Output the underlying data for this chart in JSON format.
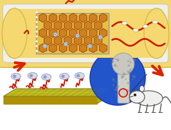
{
  "bg_color": "#ffffff",
  "figsize": [
    2.47,
    1.89
  ],
  "dpi": 100,
  "bone_outer_color": "#f5d870",
  "bone_white_color": "#f0efe8",
  "bone_inner_color": "#f5d870",
  "scaffold_bg": "#e8c040",
  "scaffold_edge": "#b07820",
  "hex_face": "#d08020",
  "hex_edge": "#a05010",
  "vessel_color": "#cc1500",
  "arrow_color": "#dd2200",
  "platform_top": "#d4c000",
  "platform_side": "#b09800",
  "platform_grid": "#4466aa",
  "blue_circle": "#2255cc",
  "bone_gray": "#c8c8c0",
  "rat_color": "#888888"
}
